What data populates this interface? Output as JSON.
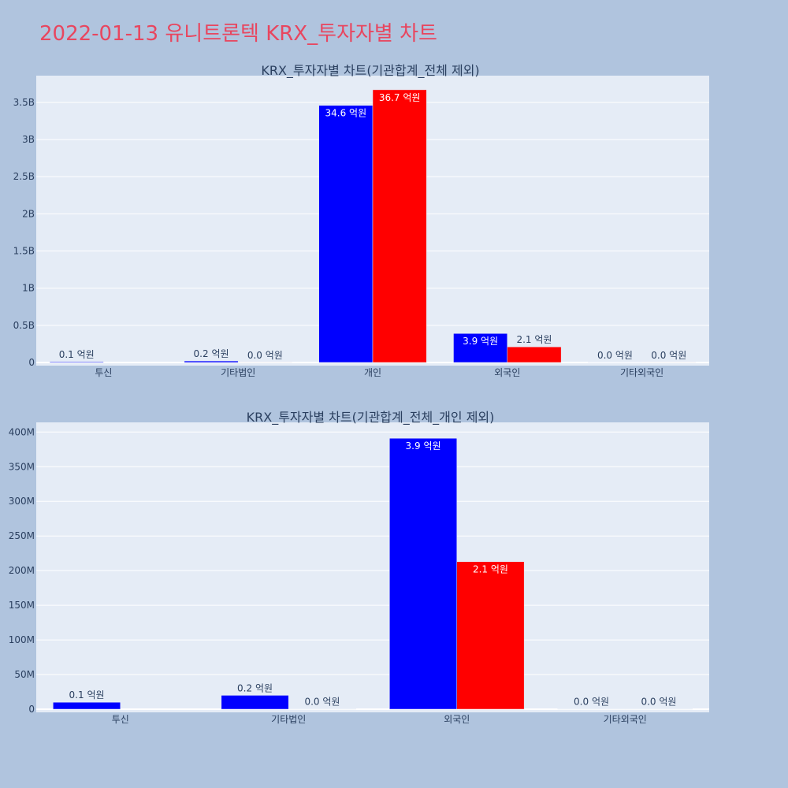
{
  "page": {
    "title": "2022-01-13 유니트론텍 KRX_투자자별 차트",
    "title_color": "#e8465f",
    "background": "#b0c4de",
    "plot_background": "#e5ecf6"
  },
  "chart_data": [
    {
      "type": "bar",
      "title": "KRX_투자자별 차트(기관합계_전체 제외)",
      "categories": [
        "투신",
        "기타법인",
        "개인",
        "외국인",
        "기타외국인"
      ],
      "series": [
        {
          "color": "#0000ff",
          "values": [
            10000000,
            20000000,
            3460000000,
            390000000,
            1000000
          ],
          "labels": [
            "0.1 억원",
            "0.2 억원",
            "34.6 억원",
            "3.9 억원",
            "0.0 억원"
          ]
        },
        {
          "color": "#ff0000",
          "values": [
            0,
            1000000,
            3670000000,
            210000000,
            1000000
          ],
          "labels": [
            "",
            "0.0 억원",
            "36.7 억원",
            "2.1 억원",
            "0.0 억원"
          ]
        }
      ],
      "yticks": [
        0,
        500000000,
        1000000000,
        1500000000,
        2000000000,
        2500000000,
        3000000000,
        3500000000
      ],
      "ytick_labels": [
        "0",
        "0.5B",
        "1B",
        "1.5B",
        "2B",
        "2.5B",
        "3B",
        "3.5B"
      ],
      "ylim": [
        0,
        3860000000
      ],
      "grid": true,
      "legend": "none"
    },
    {
      "type": "bar",
      "title": "KRX_투자자별 차트(기관합계_전체_개인 제외)",
      "categories": [
        "투신",
        "기타법인",
        "외국인",
        "기타외국인"
      ],
      "series": [
        {
          "color": "#0000ff",
          "values": [
            10000000,
            20000000,
            391000000,
            500000
          ],
          "labels": [
            "0.1 억원",
            "0.2 억원",
            "3.9 억원",
            "0.0 억원"
          ]
        },
        {
          "color": "#ff0000",
          "values": [
            0,
            500000,
            213000000,
            500000
          ],
          "labels": [
            "",
            "0.0 억원",
            "2.1 억원",
            "0.0 억원"
          ]
        }
      ],
      "yticks": [
        0,
        50000000,
        100000000,
        150000000,
        200000000,
        250000000,
        300000000,
        350000000,
        400000000
      ],
      "ytick_labels": [
        "0",
        "50M",
        "100M",
        "150M",
        "200M",
        "250M",
        "300M",
        "350M",
        "400M"
      ],
      "ylim": [
        0,
        414000000
      ],
      "grid": true,
      "legend": "none"
    }
  ]
}
